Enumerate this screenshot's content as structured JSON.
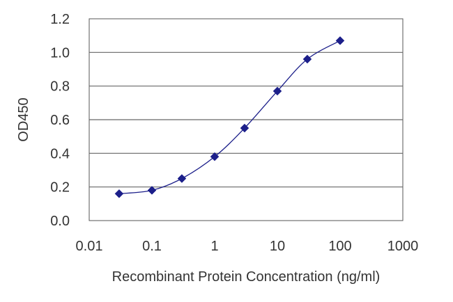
{
  "chart_data": {
    "type": "scatter",
    "xscale": "log",
    "xlabel": "Recombinant Protein Concentration (ng/ml)",
    "ylabel": "OD450",
    "xlim": [
      0.01,
      1000
    ],
    "ylim": [
      0,
      1.2
    ],
    "x_ticks": [
      0.01,
      0.1,
      1,
      10,
      100,
      1000
    ],
    "x_tick_labels": [
      "0.01",
      "0.1",
      "1",
      "10",
      "100",
      "1000"
    ],
    "y_ticks": [
      0,
      0.2,
      0.4,
      0.6,
      0.8,
      1.0,
      1.2
    ],
    "y_tick_labels": [
      "0.0",
      "0.2",
      "0.4",
      "0.6",
      "0.8",
      "1.0",
      "1.2"
    ],
    "grid": "horizontal",
    "legend": "none",
    "series": [
      {
        "x": [
          0.03,
          0.1,
          0.3,
          1,
          3,
          10,
          30,
          100
        ],
        "y": [
          0.16,
          0.18,
          0.25,
          0.38,
          0.55,
          0.77,
          0.96,
          1.07
        ],
        "marker": "diamond",
        "color": "#1c1f8a",
        "fit_line": true
      }
    ]
  }
}
